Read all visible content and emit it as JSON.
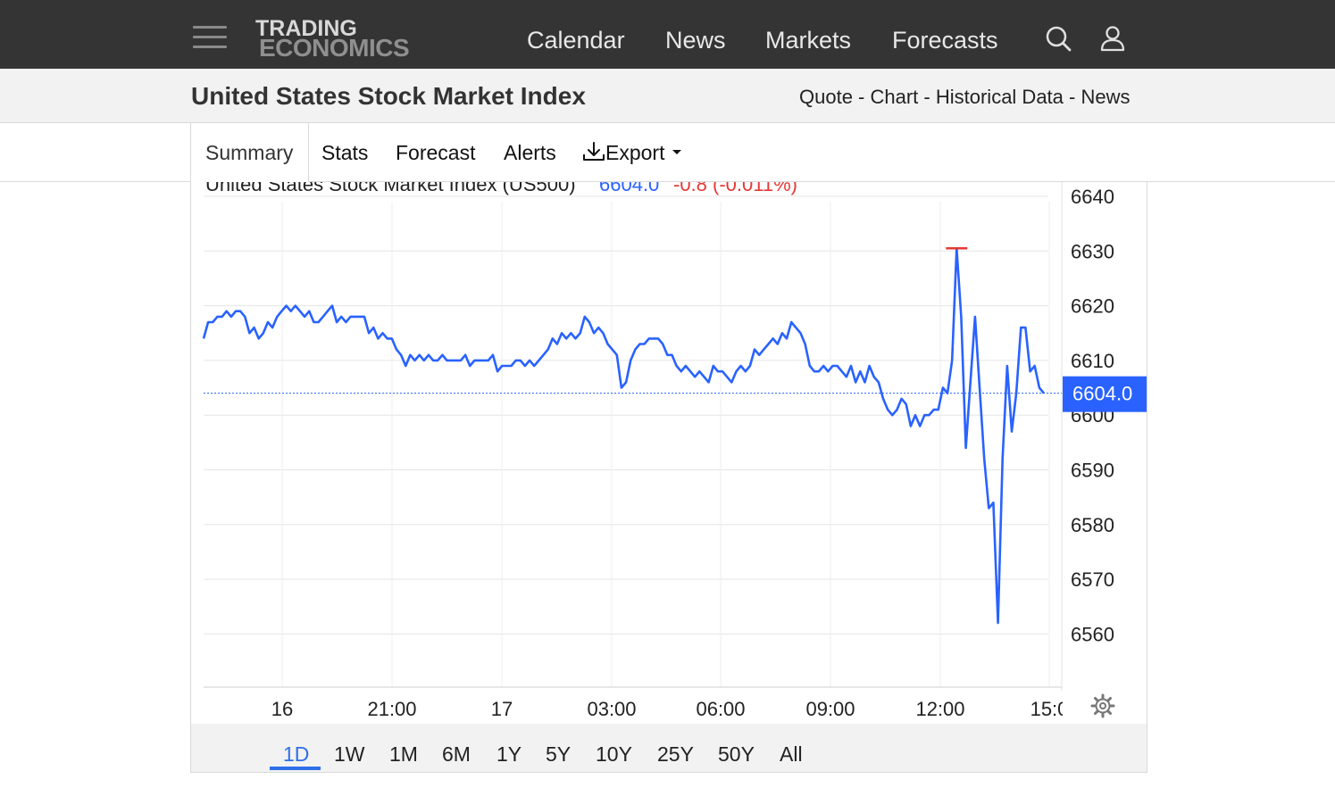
{
  "nav": {
    "logo_line1": "TRADING",
    "logo_line2": "ECONOMICS",
    "links": [
      "Calendar",
      "News",
      "Markets",
      "Forecasts"
    ]
  },
  "header": {
    "title": "United States Stock Market Index",
    "crumbs": [
      "Quote",
      "Chart",
      "Historical Data",
      "News"
    ],
    "crumb_sep": " - "
  },
  "tabs": [
    "Summary",
    "Stats",
    "Forecast",
    "Alerts",
    "Export"
  ],
  "chart": {
    "legend_name": "United States Stock Market Index (US500)",
    "legend_price": "6604.0",
    "legend_change": "-0.8 (-0.011%)",
    "price_tag": "6604.0",
    "colors": {
      "line": "#2962ff",
      "positive": "#2962ff",
      "negative": "#e53935",
      "tag_bg": "#2962ff"
    }
  },
  "ranges": [
    "1D",
    "1W",
    "1M",
    "6M",
    "1Y",
    "5Y",
    "10Y",
    "25Y",
    "50Y",
    "All"
  ],
  "active_range": "1D",
  "chart_data": {
    "type": "line",
    "title": "United States Stock Market Index (US500)",
    "xlabel": "",
    "ylabel": "",
    "x_tick_labels": [
      "16",
      "21:00",
      "17",
      "03:00",
      "06:00",
      "09:00",
      "12:00",
      "15:0"
    ],
    "y_tick_labels": [
      "6640",
      "6630",
      "6620",
      "6610",
      "6600",
      "6590",
      "6580",
      "6570",
      "6560"
    ],
    "ylim": [
      6550,
      6642
    ],
    "last_price": 6604.0,
    "session_high": 6630.5,
    "series": [
      {
        "values": [
          6614,
          6617,
          6617,
          6618,
          6618,
          6619,
          6618,
          6619,
          6619,
          6618,
          6615,
          6616,
          6614,
          6615,
          6617,
          6616,
          6618,
          6619,
          6620,
          6619,
          6620,
          6619,
          6618,
          6619,
          6617,
          6617,
          6618,
          6619,
          6620,
          6617,
          6618,
          6617,
          6618,
          6618,
          6618,
          6618,
          6615,
          6616,
          6614,
          6615,
          6614,
          6614,
          6612,
          6611,
          6609,
          6611,
          6610,
          6611,
          6610,
          6611,
          6610,
          6610,
          6611,
          6610,
          6610,
          6610,
          6610,
          6611,
          6609,
          6610,
          6610,
          6610,
          6610,
          6611,
          6608,
          6609,
          6609,
          6609,
          6610,
          6610,
          6609,
          6610,
          6609,
          6610,
          6611,
          6612,
          6614,
          6613,
          6615,
          6614,
          6615,
          6614,
          6615,
          6618,
          6617,
          6615,
          6616,
          6615,
          6613,
          6612,
          6611,
          6605,
          6606,
          6610,
          6612,
          6613,
          6613,
          6614,
          6614,
          6614,
          6613,
          6611,
          6611,
          6609,
          6608,
          6609,
          6608,
          6607,
          6608,
          6607,
          6606,
          6609,
          6608,
          6608,
          6607,
          6606,
          6608,
          6609,
          6608,
          6609,
          6612,
          6611,
          6612,
          6613,
          6614,
          6613,
          6615,
          6614,
          6617,
          6616,
          6615,
          6613,
          6609,
          6608,
          6608,
          6609,
          6608,
          6609,
          6609,
          6608,
          6607,
          6609,
          6606,
          6608,
          6606,
          6609,
          6607,
          6606,
          6603,
          6601,
          6600,
          6601,
          6603,
          6602,
          6598,
          6600,
          6598,
          6600,
          6600,
          6601,
          6601,
          6605,
          6604,
          6610,
          6630.5,
          6618,
          6594,
          6606,
          6618,
          6605,
          6592,
          6583,
          6584,
          6562,
          6592,
          6609,
          6597,
          6604,
          6616,
          6616,
          6608,
          6609,
          6605,
          6604
        ]
      }
    ],
    "grid": true,
    "legend_position": "top-left"
  }
}
